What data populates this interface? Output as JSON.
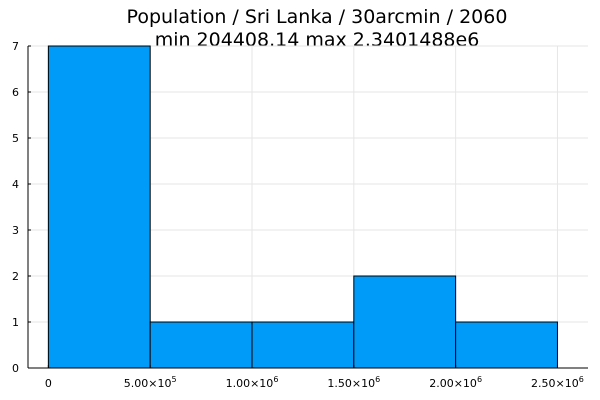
{
  "chart_data": {
    "type": "bar",
    "title": "Population / Sri Lanka / 30arcmin / 2060",
    "subtitle": "min 204408.14  max 2.3401488e6",
    "xlabel": "",
    "ylabel": "",
    "grid": true,
    "xlim": [
      -100000,
      2650000
    ],
    "ylim": [
      0,
      7
    ],
    "bins": [
      {
        "x0": 0,
        "x1": 500000,
        "count": 7
      },
      {
        "x0": 500000,
        "x1": 1000000,
        "count": 1
      },
      {
        "x0": 1000000,
        "x1": 1500000,
        "count": 1
      },
      {
        "x0": 1500000,
        "x1": 2000000,
        "count": 2
      },
      {
        "x0": 2000000,
        "x1": 2500000,
        "count": 1
      }
    ],
    "x_ticks": [
      {
        "value": 0,
        "mantissa": "0",
        "exponent": ""
      },
      {
        "value": 500000,
        "mantissa": "5.00×10",
        "exponent": "5"
      },
      {
        "value": 1000000,
        "mantissa": "1.00×10",
        "exponent": "6"
      },
      {
        "value": 1500000,
        "mantissa": "1.50×10",
        "exponent": "6"
      },
      {
        "value": 2000000,
        "mantissa": "2.00×10",
        "exponent": "6"
      },
      {
        "value": 2500000,
        "mantissa": "2.50×10",
        "exponent": "6"
      }
    ],
    "y_ticks": [
      "0",
      "1",
      "2",
      "3",
      "4",
      "5",
      "6",
      "7"
    ],
    "bar_color": "#009af9"
  }
}
